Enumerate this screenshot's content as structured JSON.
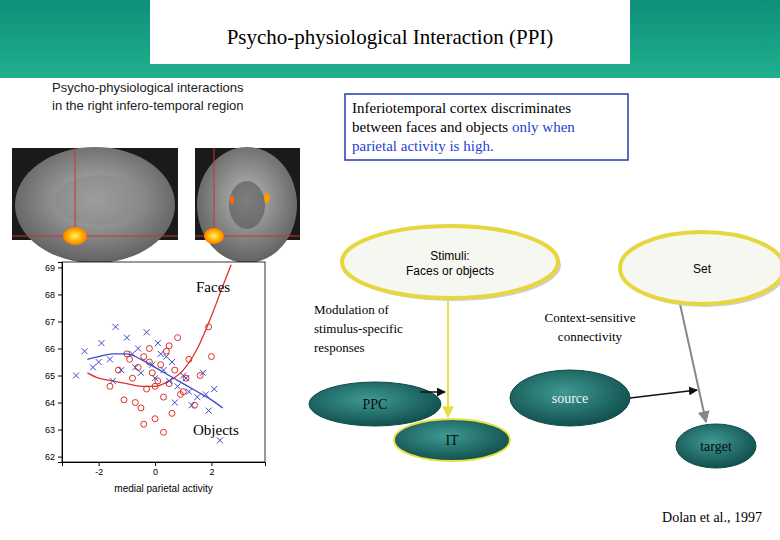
{
  "title": "Psycho-physiological Interaction (PPI)",
  "brain_panel": {
    "caption": [
      "Psycho-physiological interactions",
      "in the right infero-temporal region"
    ]
  },
  "callout": {
    "lines": [
      [
        {
          "text": "Inferiotemporal cortex discriminates",
          "emphasis": false
        }
      ],
      [
        {
          "text": "between faces and objects ",
          "emphasis": false
        },
        {
          "text": "only when",
          "emphasis": true
        }
      ],
      [
        {
          "text": "parietal activity is high.",
          "emphasis": true
        }
      ]
    ]
  },
  "chart_data": {
    "type": "scatter",
    "x_label": "medial parietal activity",
    "xlim": [
      -3.3,
      3.9
    ],
    "xticks": [
      -2,
      0,
      2
    ],
    "ylim": [
      61.8,
      69.2
    ],
    "yticks": [
      62,
      63,
      64,
      65,
      66,
      67,
      68,
      69
    ],
    "series": [
      {
        "name": "Faces",
        "color": "#e0302a",
        "marker": "circle",
        "x": [
          -1.6,
          -1.3,
          -1.1,
          -0.9,
          -0.8,
          -0.6,
          -0.5,
          -0.4,
          -0.3,
          -0.2,
          -0.1,
          0,
          0.1,
          0.2,
          0.3,
          0.4,
          0.5,
          0.6,
          0.7,
          0.8,
          1.0,
          1.2,
          1.4,
          1.6,
          1.9,
          -0.7,
          -0.2,
          0.3,
          0.9,
          -1.0,
          0.0,
          0.5,
          -0.4,
          1.1,
          2.0
        ],
        "y": [
          64.6,
          65.2,
          64.1,
          65.6,
          64.9,
          65.3,
          63.8,
          65.7,
          64.5,
          66.0,
          65.1,
          63.4,
          64.8,
          65.4,
          64.2,
          65.9,
          64.7,
          63.6,
          65.2,
          66.4,
          64.4,
          65.6,
          63.9,
          65.0,
          66.8,
          64.0,
          65.5,
          62.9,
          64.3,
          65.8,
          64.6,
          66.1,
          63.2,
          64.9,
          65.7
        ],
        "fit": {
          "x": [
            -2.4,
            -2,
            -1.5,
            -1,
            -0.5,
            0,
            0.5,
            1,
            1.5,
            2,
            2.4,
            2.7
          ],
          "y": [
            65.1,
            64.9,
            64.8,
            64.7,
            64.6,
            64.6,
            64.8,
            65.2,
            66.0,
            67.2,
            68.3,
            69.1
          ]
        }
      },
      {
        "name": "Objects",
        "color": "#3a4ac8",
        "marker": "x",
        "x": [
          -2.8,
          -2.5,
          -2.2,
          -1.9,
          -1.6,
          -1.4,
          -1.2,
          -1.0,
          -0.8,
          -0.6,
          -0.5,
          -0.3,
          -0.1,
          0.0,
          0.2,
          0.3,
          0.5,
          0.6,
          0.8,
          1.0,
          1.2,
          1.3,
          1.5,
          1.7,
          1.9,
          2.1,
          -1.5,
          -0.7,
          0.1,
          0.7,
          1.1,
          -2.0,
          0.4,
          1.8,
          2.3
        ],
        "y": [
          65.0,
          65.9,
          65.3,
          66.2,
          65.6,
          66.8,
          65.2,
          66.4,
          65.8,
          66.0,
          65.1,
          66.6,
          65.4,
          64.9,
          65.8,
          65.2,
          64.8,
          65.5,
          64.6,
          65.0,
          64.4,
          63.9,
          64.2,
          65.1,
          63.7,
          64.5,
          64.8,
          65.3,
          66.2,
          64.0,
          64.9,
          65.5,
          65.7,
          64.3,
          62.6
        ],
        "fit": {
          "x": [
            -2.4,
            -2,
            -1.5,
            -1,
            -0.5,
            0,
            0.5,
            1,
            1.5,
            2,
            2.4
          ],
          "y": [
            65.6,
            65.7,
            65.8,
            65.8,
            65.6,
            65.3,
            65.0,
            64.7,
            64.4,
            64.1,
            63.8
          ]
        }
      }
    ]
  },
  "diagram": {
    "nodes": [
      {
        "id": "stimuli",
        "label": [
          "Stimuli:",
          "Faces or objects"
        ]
      },
      {
        "id": "set",
        "label": [
          "Set"
        ]
      },
      {
        "id": "ppc",
        "label": [
          "PPC"
        ]
      },
      {
        "id": "source",
        "label": [
          "source"
        ]
      },
      {
        "id": "it",
        "label": [
          "IT"
        ]
      },
      {
        "id": "target",
        "label": [
          "target"
        ]
      }
    ],
    "annotations": [
      {
        "id": "modulation",
        "lines": [
          "Modulation of",
          "stimulus-specific",
          "responses"
        ]
      },
      {
        "id": "context",
        "lines": [
          "Context-sensitive",
          "connectivity"
        ]
      }
    ]
  },
  "citation": "Dolan et al., 1997"
}
